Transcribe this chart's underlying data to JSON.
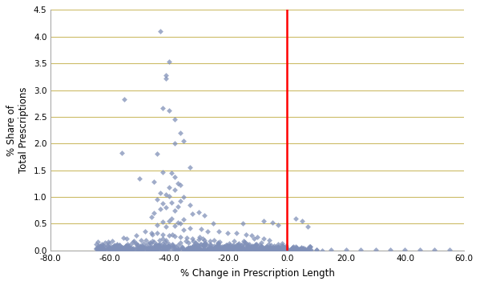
{
  "title": "",
  "xlabel": "% Change in Prescription Length",
  "ylabel": "% Share of\nTotal Prescriptions",
  "xlim": [
    -80,
    60
  ],
  "ylim": [
    0,
    4.5
  ],
  "xticks": [
    -80,
    -60,
    -40,
    -20,
    0,
    20,
    40,
    60
  ],
  "yticks": [
    0.0,
    0.5,
    1.0,
    1.5,
    2.0,
    2.5,
    3.0,
    3.5,
    4.0,
    4.5
  ],
  "marker_color": "#8090b8",
  "vline_x": 0,
  "vline_color": "red",
  "background_color": "#ffffff",
  "grid_color": "#ccbb66",
  "marker_size": 12,
  "seed": 42,
  "high_points": [
    [
      -43,
      4.1
    ],
    [
      -40,
      3.53
    ],
    [
      -41,
      3.27
    ],
    [
      -41,
      3.22
    ],
    [
      -55,
      2.83
    ],
    [
      -42,
      2.67
    ],
    [
      -40,
      2.62
    ],
    [
      -38,
      2.45
    ],
    [
      -36,
      2.2
    ],
    [
      -35,
      2.05
    ],
    [
      -38,
      2.0
    ],
    [
      -56,
      1.83
    ],
    [
      -44,
      1.81
    ],
    [
      -33,
      1.56
    ],
    [
      -42,
      1.47
    ],
    [
      -39,
      1.45
    ],
    [
      -38,
      1.38
    ],
    [
      -50,
      1.35
    ],
    [
      -45,
      1.28
    ],
    [
      -37,
      1.25
    ],
    [
      -36,
      1.23
    ],
    [
      -40,
      1.18
    ],
    [
      -38,
      1.13
    ],
    [
      -43,
      1.07
    ],
    [
      -41,
      1.05
    ],
    [
      -40,
      1.02
    ],
    [
      -35,
      1.0
    ],
    [
      -44,
      0.95
    ],
    [
      -36,
      0.92
    ],
    [
      -39,
      0.9
    ],
    [
      -42,
      0.88
    ],
    [
      -33,
      0.85
    ],
    [
      -37,
      0.82
    ],
    [
      -41,
      0.8
    ],
    [
      -43,
      0.78
    ],
    [
      -38,
      0.75
    ],
    [
      -30,
      0.72
    ],
    [
      -45,
      0.7
    ],
    [
      -32,
      0.68
    ],
    [
      -28,
      0.65
    ],
    [
      -46,
      0.62
    ],
    [
      -39,
      0.6
    ],
    [
      -35,
      0.58
    ],
    [
      -40,
      0.55
    ],
    [
      -42,
      0.53
    ],
    [
      -37,
      0.52
    ],
    [
      -36,
      0.5
    ],
    [
      -25,
      0.5
    ],
    [
      -15,
      0.5
    ],
    [
      -5,
      0.52
    ],
    [
      -8,
      0.55
    ],
    [
      -3,
      0.48
    ],
    [
      3,
      0.6
    ],
    [
      5,
      0.55
    ],
    [
      7,
      0.45
    ],
    [
      -44,
      0.48
    ],
    [
      -38,
      0.46
    ],
    [
      -41,
      0.44
    ],
    [
      -33,
      0.42
    ],
    [
      -29,
      0.4
    ],
    [
      -35,
      0.38
    ],
    [
      -27,
      0.36
    ],
    [
      -23,
      0.35
    ],
    [
      -20,
      0.33
    ],
    [
      -17,
      0.32
    ],
    [
      -14,
      0.3
    ],
    [
      -12,
      0.28
    ],
    [
      -10,
      0.25
    ],
    [
      -8,
      0.22
    ],
    [
      -6,
      0.2
    ],
    [
      -48,
      0.35
    ],
    [
      -46,
      0.33
    ],
    [
      -44,
      0.32
    ],
    [
      -42,
      0.3
    ],
    [
      -40,
      0.28
    ],
    [
      -38,
      0.27
    ],
    [
      -36,
      0.25
    ],
    [
      -34,
      0.24
    ],
    [
      -32,
      0.22
    ],
    [
      -30,
      0.21
    ],
    [
      -28,
      0.2
    ],
    [
      -26,
      0.18
    ]
  ],
  "pos_sparse": [
    [
      10,
      0.02
    ],
    [
      15,
      0.01
    ],
    [
      20,
      0.01
    ],
    [
      25,
      0.01
    ],
    [
      30,
      0.01
    ],
    [
      35,
      0.01
    ],
    [
      40,
      0.02
    ],
    [
      45,
      0.01
    ],
    [
      50,
      0.01
    ],
    [
      55,
      0.02
    ]
  ]
}
